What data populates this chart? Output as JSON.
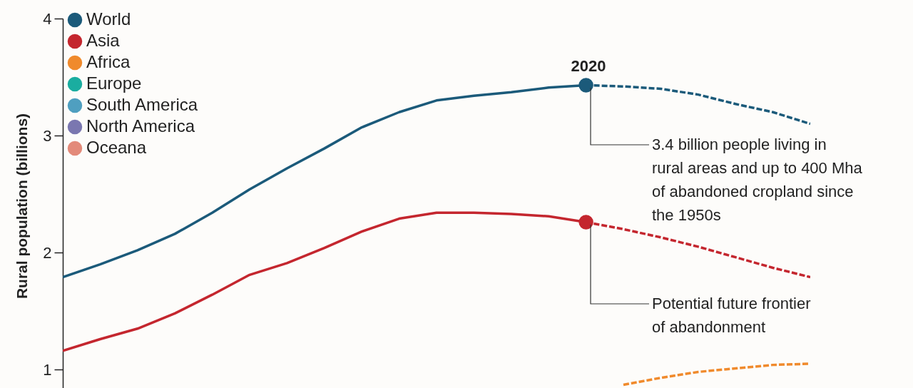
{
  "chart_data": {
    "type": "line",
    "ylabel": "Rural population (billions)",
    "categories": [
      null,
      null,
      null,
      null,
      null,
      null,
      null,
      null,
      null,
      null,
      null,
      null,
      null,
      null,
      null,
      null,
      null,
      null,
      null,
      null,
      null
    ],
    "ylim": [
      0.8,
      4
    ],
    "yticks": [
      1,
      2,
      3,
      4
    ],
    "grid": false,
    "legend": "top left",
    "series": [
      {
        "name": "World",
        "color": "#1b5a7a",
        "line_style": "solid",
        "values": [
          1.79,
          1.9,
          2.02,
          2.16,
          2.34,
          2.54,
          2.72,
          2.89,
          3.07,
          3.2,
          3.3,
          3.34,
          3.37,
          3.41,
          3.43,
          null,
          null,
          null,
          null,
          null,
          null
        ]
      },
      {
        "color": "#1b5a7a",
        "line_style": "dashed",
        "values": [
          null,
          null,
          null,
          null,
          null,
          null,
          null,
          null,
          null,
          null,
          null,
          null,
          null,
          null,
          3.43,
          3.42,
          3.4,
          3.35,
          3.27,
          3.2,
          3.1
        ]
      },
      {
        "name": "Asia",
        "color": "#c4262e",
        "line_style": "solid",
        "values": [
          1.16,
          1.26,
          1.35,
          1.48,
          1.64,
          1.81,
          1.91,
          2.04,
          2.18,
          2.29,
          2.34,
          2.34,
          2.33,
          2.31,
          2.26,
          null,
          null,
          null,
          null,
          null,
          null
        ]
      },
      {
        "color": "#c4262e",
        "line_style": "dashed",
        "values": [
          null,
          null,
          null,
          null,
          null,
          null,
          null,
          null,
          null,
          null,
          null,
          null,
          null,
          null,
          2.26,
          2.2,
          2.13,
          2.05,
          1.96,
          1.87,
          1.79
        ]
      },
      {
        "name": "Africa",
        "color": "#f08a2c",
        "line_style": "dashed",
        "values": [
          null,
          null,
          null,
          null,
          null,
          null,
          null,
          null,
          null,
          null,
          null,
          null,
          null,
          null,
          null,
          0.87,
          0.93,
          0.98,
          1.01,
          1.04,
          1.05
        ]
      },
      {
        "name": "Europe",
        "color": "#1aada0",
        "values": [
          null,
          null,
          null,
          null,
          null,
          null,
          null,
          null,
          null,
          null,
          null,
          null,
          null,
          null,
          null,
          null,
          null,
          null,
          null,
          null,
          null
        ]
      },
      {
        "name": "South America",
        "color": "#4f9fc0",
        "values": [
          null,
          null,
          null,
          null,
          null,
          null,
          null,
          null,
          null,
          null,
          null,
          null,
          null,
          null,
          null,
          null,
          null,
          null,
          null,
          null,
          null
        ]
      },
      {
        "name": "North America",
        "color": "#7a77b0",
        "values": [
          null,
          null,
          null,
          null,
          null,
          null,
          null,
          null,
          null,
          null,
          null,
          null,
          null,
          null,
          null,
          null,
          null,
          null,
          null,
          null,
          null
        ]
      },
      {
        "name": "Oceana",
        "color": "#e38a7a",
        "values": [
          null,
          null,
          null,
          null,
          null,
          null,
          null,
          null,
          null,
          null,
          null,
          null,
          null,
          null,
          null,
          null,
          null,
          null,
          null,
          null,
          null
        ]
      },
      {
        "type": "scatter",
        "marker": "circle",
        "color": "#1b5a7a",
        "values": [
          null,
          null,
          null,
          null,
          null,
          null,
          null,
          null,
          null,
          null,
          null,
          null,
          null,
          null,
          3.43,
          null,
          null,
          null,
          null,
          null,
          null
        ]
      },
      {
        "type": "scatter",
        "marker": "circle",
        "color": "#c4262e",
        "values": [
          null,
          null,
          null,
          null,
          null,
          null,
          null,
          null,
          null,
          null,
          null,
          null,
          null,
          null,
          2.26,
          null,
          null,
          null,
          null,
          null,
          null
        ]
      }
    ],
    "annotations": [
      "2020",
      "3.4 billion  people living in\nrural areas and up to 400 Mha\nof abandoned cropland since\nthe 1950s",
      "Potential future frontier\nof abandonment"
    ]
  }
}
